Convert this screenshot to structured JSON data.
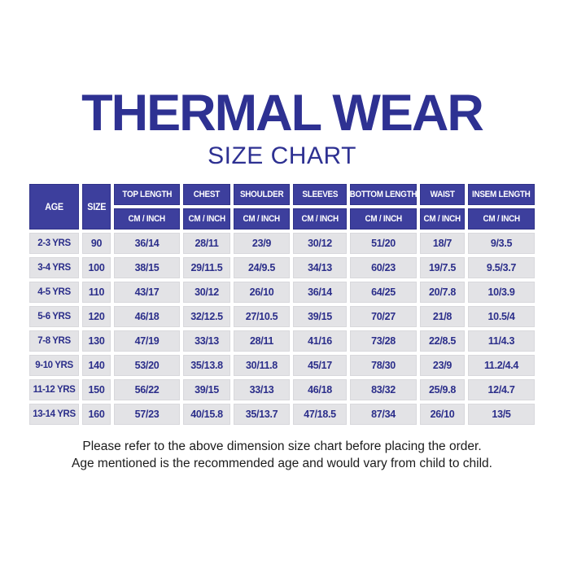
{
  "title": "THERMAL WEAR",
  "subtitle": "SIZE CHART",
  "colors": {
    "title_blue": "#2e3192",
    "header_bg": "#3d3f9d",
    "header_text": "#ffffff",
    "cell_bg": "#e3e3e6",
    "cell_text": "#2b2e8a",
    "footer_text": "#1b1b1b",
    "page_bg": "#ffffff"
  },
  "table": {
    "row_header_columns": [
      "AGE",
      "SIZE"
    ],
    "measure_columns": [
      "TOP LENGTH",
      "CHEST",
      "SHOULDER",
      "SLEEVES",
      "BOTTOM LENGTH",
      "WAIST",
      "INSEM LENGTH"
    ],
    "unit_label": "CM / INCH",
    "rows": [
      {
        "age": "2-3 YRS",
        "size": "90",
        "values": [
          "36/14",
          "28/11",
          "23/9",
          "30/12",
          "51/20",
          "18/7",
          "9/3.5"
        ]
      },
      {
        "age": "3-4 YRS",
        "size": "100",
        "values": [
          "38/15",
          "29/11.5",
          "24/9.5",
          "34/13",
          "60/23",
          "19/7.5",
          "9.5/3.7"
        ]
      },
      {
        "age": "4-5 YRS",
        "size": "110",
        "values": [
          "43/17",
          "30/12",
          "26/10",
          "36/14",
          "64/25",
          "20/7.8",
          "10/3.9"
        ]
      },
      {
        "age": "5-6 YRS",
        "size": "120",
        "values": [
          "46/18",
          "32/12.5",
          "27/10.5",
          "39/15",
          "70/27",
          "21/8",
          "10.5/4"
        ]
      },
      {
        "age": "7-8 YRS",
        "size": "130",
        "values": [
          "47/19",
          "33/13",
          "28/11",
          "41/16",
          "73/28",
          "22/8.5",
          "11/4.3"
        ]
      },
      {
        "age": "9-10 YRS",
        "size": "140",
        "values": [
          "53/20",
          "35/13.8",
          "30/11.8",
          "45/17",
          "78/30",
          "23/9",
          "11.2/4.4"
        ]
      },
      {
        "age": "11-12 YRS",
        "size": "150",
        "values": [
          "56/22",
          "39/15",
          "33/13",
          "46/18",
          "83/32",
          "25/9.8",
          "12/4.7"
        ]
      },
      {
        "age": "13-14 YRS",
        "size": "160",
        "values": [
          "57/23",
          "40/15.8",
          "35/13.7",
          "47/18.5",
          "87/34",
          "26/10",
          "13/5"
        ]
      }
    ]
  },
  "footer": {
    "line1": "Please refer to the above dimension size chart before placing the order.",
    "line2": "Age mentioned is the recommended age and would vary from child to child."
  }
}
